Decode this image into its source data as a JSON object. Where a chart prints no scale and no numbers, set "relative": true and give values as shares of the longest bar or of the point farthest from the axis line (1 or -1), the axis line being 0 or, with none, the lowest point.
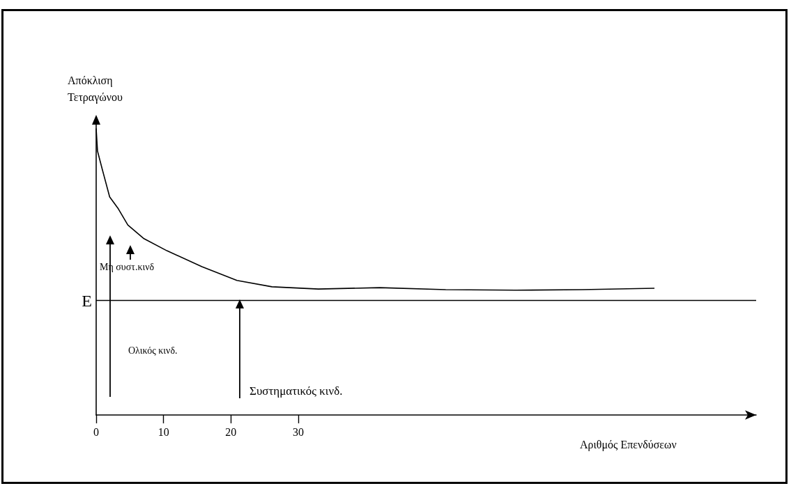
{
  "chart_data": {
    "type": "line",
    "relative": true,
    "xlabel": "Αριθμός Επενδύσεων",
    "ylabel": "Απόκλιση\nΤετραγώνου",
    "x": [
      0,
      0.2,
      0.9,
      2.0,
      3.3,
      4.7,
      7.1,
      10.5,
      15.7,
      20.9,
      26.1,
      33.0,
      42.1,
      51.9,
      62.3,
      72.1,
      82.9
    ],
    "series": [
      {
        "color": "#000000",
        "values": [
          1.0,
          0.922,
          0.859,
          0.762,
          0.72,
          0.664,
          0.616,
          0.574,
          0.518,
          0.47,
          0.448,
          0.44,
          0.445,
          0.438,
          0.436,
          0.438,
          0.443
        ]
      }
    ],
    "xlim": [
      0,
      98
    ],
    "xticks": [
      0,
      10,
      20,
      30
    ],
    "ref_lines": [
      {
        "axis": "y",
        "value": 0.404,
        "label": "E",
        "color": "#000000"
      }
    ],
    "annotations": [
      "Μη συστ.κινδ",
      "Ολικός κινδ.",
      "Συστηματικός κινδ."
    ],
    "grid": false,
    "marker": "none",
    "line_style": "solid"
  }
}
